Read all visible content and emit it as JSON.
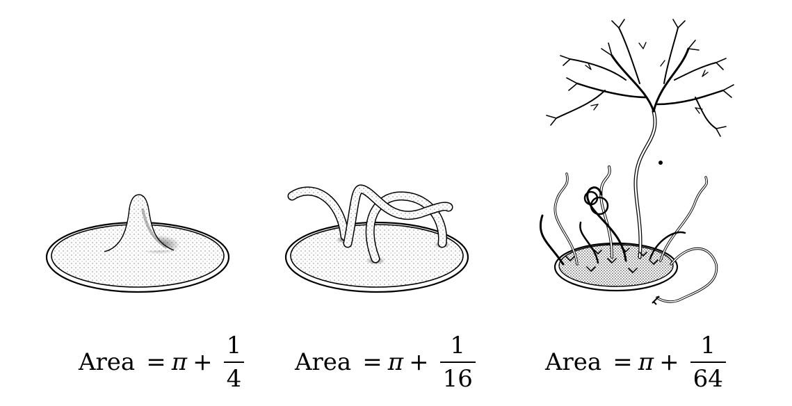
{
  "panels": [
    {
      "label": "Area",
      "equals": "=",
      "pi": "π",
      "plus": "+",
      "numerator": "1",
      "denominator": "4"
    },
    {
      "label": "Area",
      "equals": "=",
      "pi": "π",
      "plus": "+",
      "numerator": "1",
      "denominator": "16"
    },
    {
      "label": "Area",
      "equals": "=",
      "pi": "π",
      "plus": "+",
      "numerator": "1",
      "denominator": "64"
    }
  ],
  "colors": {
    "ink": "#000000",
    "paper": "#ffffff",
    "stipple": "#555555"
  }
}
